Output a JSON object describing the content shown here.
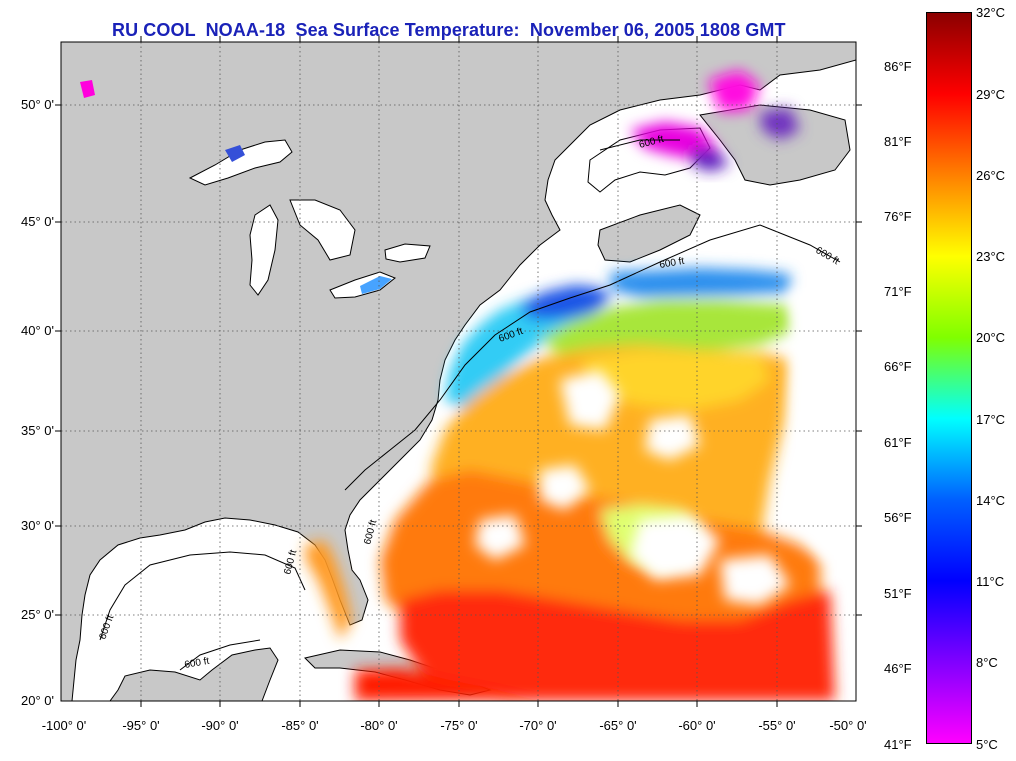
{
  "title": "RU COOL  NOAA-18  Sea Surface Temperature:  November 06, 2005 1808 GMT",
  "latitude_labels": [
    "50° 0'",
    "45° 0'",
    "40° 0'",
    "35° 0'",
    "30° 0'",
    "25° 0'",
    "20° 0'"
  ],
  "longitude_labels": [
    "-100° 0'",
    "-95° 0'",
    "-90° 0'",
    "-85° 0'",
    "-80° 0'",
    "-75° 0'",
    "-70° 0'",
    "-65° 0'",
    "-60° 0'",
    "-55° 0'",
    "-50° 0'"
  ],
  "isobath_label": "600 ft",
  "colorbar": {
    "fahrenheit_labels": [
      "86°F",
      "81°F",
      "76°F",
      "71°F",
      "66°F",
      "61°F",
      "56°F",
      "51°F",
      "46°F",
      "41°F"
    ],
    "celsius_labels": [
      "32°C",
      "29°C",
      "26°C",
      "23°C",
      "20°C",
      "17°C",
      "14°C",
      "11°C",
      "8°C",
      "5°C"
    ],
    "colors_top_to_bottom": [
      "#8b0000",
      "#ff0000",
      "#ff8000",
      "#ffff00",
      "#80ff00",
      "#00ffff",
      "#0060ff",
      "#0000ff",
      "#8000ff",
      "#ff00ff"
    ]
  },
  "colors": {
    "land": "#c8c8c8",
    "title": "#1a22b8",
    "no_data": "#ffffff",
    "coastline": "#000000"
  }
}
